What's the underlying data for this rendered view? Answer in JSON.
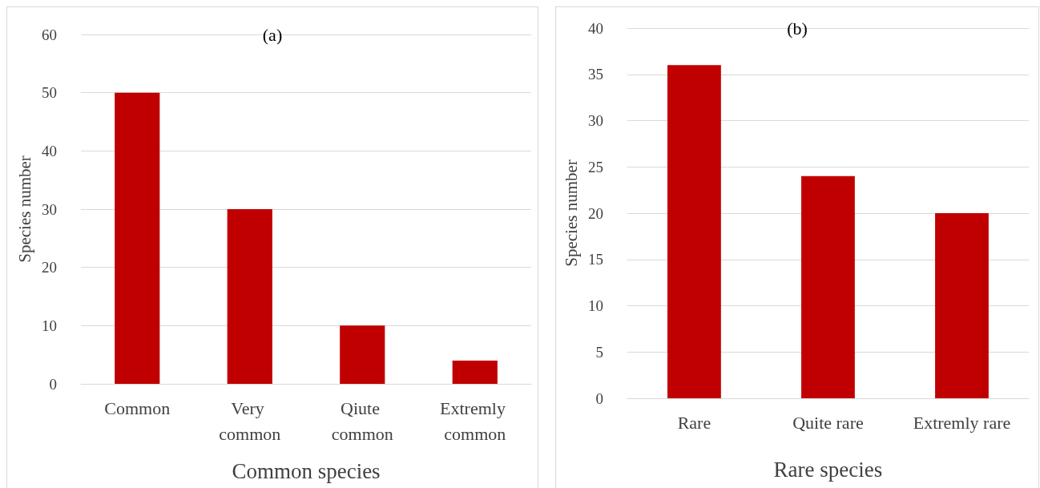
{
  "chart_data": [
    {
      "type": "bar",
      "title": "(a)",
      "xlabel": "Common species",
      "ylabel": "Species number",
      "categories": [
        "Common",
        "Very common",
        "Qiute common",
        "Extremly common"
      ],
      "values": [
        50,
        30,
        10,
        4
      ],
      "color": "#c00000",
      "ylim": [
        0,
        60
      ],
      "yticks": [
        0,
        10,
        20,
        30,
        40,
        50,
        60
      ],
      "grid": "y"
    },
    {
      "type": "bar",
      "title": "(b)",
      "xlabel": "Rare species",
      "ylabel": "Species number",
      "categories": [
        "Rare",
        "Quite rare",
        "Extremly rare"
      ],
      "values": [
        36,
        24,
        20
      ],
      "color": "#c00000",
      "ylim": [
        0,
        40
      ],
      "yticks": [
        0,
        5,
        10,
        15,
        20,
        25,
        30,
        35,
        40
      ],
      "grid": "y"
    }
  ]
}
